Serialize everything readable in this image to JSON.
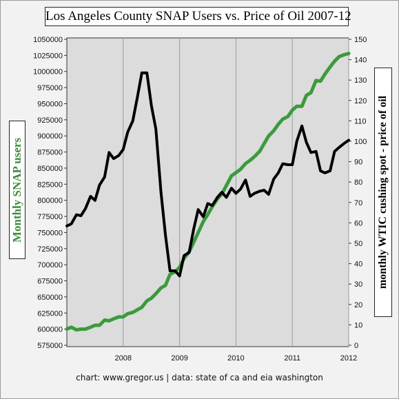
{
  "chart_data": {
    "type": "line",
    "title": "Los Angeles County SNAP Users vs. Price of Oil 2007-12",
    "ylabel_left": "Monthly SNAP users",
    "ylabel_right": "monthly WTIC cushing spot - price of oil",
    "footer": "chart: www.gregor.us   |   data: state of ca and eia washington",
    "xlim": [
      2007,
      2012
    ],
    "x_ticks": [
      "2008",
      "2009",
      "2010",
      "2011",
      "2012"
    ],
    "x_tick_values": [
      2008,
      2009,
      2010,
      2011,
      2012
    ],
    "left_axis": {
      "ylim": [
        575000,
        1050000
      ],
      "ticks": [
        "575000",
        "600000",
        "625000",
        "650000",
        "675000",
        "700000",
        "725000",
        "750000",
        "775000",
        "800000",
        "825000",
        "850000",
        "875000",
        "900000",
        "925000",
        "950000",
        "975000",
        "1000000",
        "1025000",
        "1050000"
      ]
    },
    "right_axis": {
      "ylim": [
        0,
        150
      ],
      "ticks": [
        "0",
        "10",
        "20",
        "30",
        "40",
        "50",
        "60",
        "70",
        "80",
        "90",
        "100",
        "110",
        "120",
        "130",
        "140",
        "150"
      ]
    },
    "grid": "vertical",
    "series": [
      {
        "name": "Monthly SNAP users",
        "axis": "left",
        "color": "#3c9a3c",
        "x": [
          2007.0,
          2007.08,
          2007.17,
          2007.25,
          2007.33,
          2007.42,
          2007.5,
          2007.58,
          2007.67,
          2007.75,
          2007.83,
          2007.92,
          2008.0,
          2008.08,
          2008.17,
          2008.25,
          2008.33,
          2008.42,
          2008.5,
          2008.58,
          2008.67,
          2008.75,
          2008.83,
          2008.92,
          2009.0,
          2009.08,
          2009.17,
          2009.25,
          2009.33,
          2009.42,
          2009.5,
          2009.58,
          2009.67,
          2009.75,
          2009.83,
          2009.92,
          2010.0,
          2010.08,
          2010.17,
          2010.25,
          2010.33,
          2010.42,
          2010.5,
          2010.58,
          2010.67,
          2010.75,
          2010.83,
          2010.92,
          2011.0,
          2011.08,
          2011.17,
          2011.25,
          2011.33,
          2011.42,
          2011.5,
          2011.58,
          2011.67,
          2011.75,
          2011.83,
          2011.92,
          2012.0
        ],
        "values": [
          600000,
          603000,
          599000,
          600000,
          600000,
          603000,
          606000,
          606000,
          614000,
          613000,
          616000,
          619000,
          619000,
          624000,
          626000,
          630000,
          634000,
          644000,
          648000,
          655000,
          664000,
          668000,
          685000,
          689000,
          696000,
          710000,
          720000,
          735000,
          750000,
          767000,
          778000,
          790000,
          802000,
          810000,
          823000,
          838000,
          843000,
          848000,
          857000,
          862000,
          868000,
          876000,
          888000,
          900000,
          908000,
          918000,
          926000,
          930000,
          940000,
          946000,
          946000,
          963000,
          967000,
          986000,
          985000,
          996000,
          1007000,
          1016000,
          1023000,
          1026000,
          1028000
        ]
      },
      {
        "name": "monthly WTIC cushing spot - price of oil",
        "axis": "right",
        "color": "#000000",
        "x": [
          2007.0,
          2007.08,
          2007.17,
          2007.25,
          2007.33,
          2007.42,
          2007.5,
          2007.58,
          2007.67,
          2007.75,
          2007.83,
          2007.92,
          2008.0,
          2008.08,
          2008.17,
          2008.25,
          2008.33,
          2008.42,
          2008.5,
          2008.58,
          2008.67,
          2008.75,
          2008.83,
          2008.92,
          2009.0,
          2009.08,
          2009.17,
          2009.25,
          2009.33,
          2009.42,
          2009.5,
          2009.58,
          2009.67,
          2009.75,
          2009.83,
          2009.92,
          2010.0,
          2010.08,
          2010.17,
          2010.25,
          2010.33,
          2010.42,
          2010.5,
          2010.58,
          2010.67,
          2010.75,
          2010.83,
          2010.92,
          2011.0,
          2011.08,
          2011.17,
          2011.25,
          2011.33,
          2011.42,
          2011.5,
          2011.58,
          2011.67,
          2011.75,
          2011.83,
          2011.92,
          2012.0
        ],
        "values": [
          58.5,
          59.5,
          64.0,
          63.5,
          67.0,
          73.0,
          71.0,
          78.5,
          82.5,
          94.5,
          91.5,
          93.0,
          96.0,
          104.5,
          110.0,
          121.5,
          133.5,
          133.5,
          117.5,
          106.0,
          75.0,
          54.0,
          36.5,
          36.5,
          34.0,
          44.0,
          45.5,
          57.0,
          66.5,
          63.0,
          69.5,
          68.5,
          72.5,
          75.0,
          72.5,
          77.0,
          74.5,
          76.5,
          81.0,
          73.0,
          74.5,
          75.5,
          76.0,
          74.0,
          81.5,
          84.5,
          89.0,
          88.5,
          88.5,
          100.0,
          107.5,
          99.5,
          94.5,
          95.0,
          85.5,
          84.5,
          85.5,
          95.0,
          97.0,
          99.0,
          100.5
        ]
      }
    ]
  }
}
